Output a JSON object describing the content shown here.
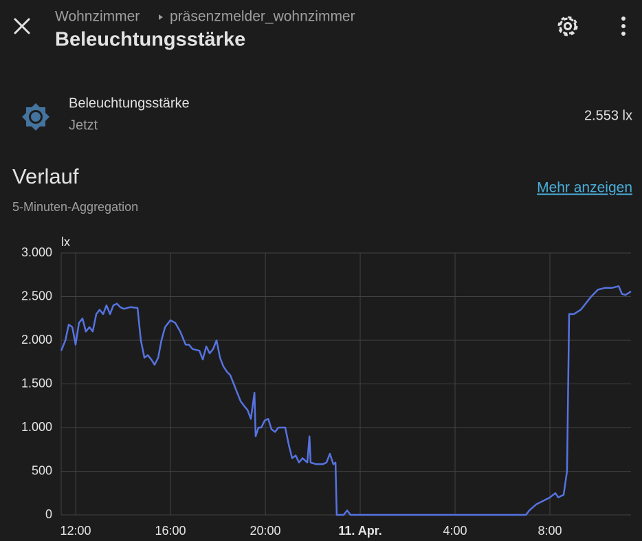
{
  "header": {
    "breadcrumb": [
      "Wohnzimmer",
      "präsenzmelder_wohnzimmer"
    ],
    "title": "Beleuchtungsstärke"
  },
  "entity": {
    "name": "Beleuchtungsstärke",
    "time": "Jetzt",
    "state": "2.553 lx"
  },
  "history": {
    "title": "Verlauf",
    "subtitle": "5-Minuten-Aggregation",
    "link": "Mehr anzeigen"
  },
  "chart_data": {
    "type": "line",
    "y_label": "lx",
    "color": "#5673e0",
    "grid": true,
    "xlim": [
      11.39,
      35.42
    ],
    "xticks": [
      {
        "value": 12,
        "label": "12:00"
      },
      {
        "value": 16,
        "label": "16:00"
      },
      {
        "value": 20,
        "label": "20:00"
      },
      {
        "value": 24,
        "label": "11. Apr."
      },
      {
        "value": 28,
        "label": "4:00"
      },
      {
        "value": 32,
        "label": "8:00"
      }
    ],
    "ylim": [
      0,
      3000
    ],
    "yticks": [
      0,
      500,
      {
        "value": 1000,
        "label": "1.000"
      },
      {
        "value": 1500,
        "label": "1.500"
      },
      {
        "value": 2000,
        "label": "2.000"
      },
      {
        "value": 2500,
        "label": "2.500"
      },
      {
        "value": 3000,
        "label": "3.000"
      }
    ],
    "x": [
      11.39,
      11.57,
      11.71,
      11.86,
      12.0,
      12.14,
      12.29,
      12.43,
      12.58,
      12.72,
      12.87,
      13.01,
      13.16,
      13.3,
      13.45,
      13.59,
      13.74,
      13.88,
      14.03,
      14.32,
      14.61,
      14.75,
      14.9,
      15.04,
      15.19,
      15.33,
      15.48,
      15.62,
      15.77,
      16.0,
      16.2,
      16.41,
      16.64,
      16.78,
      16.93,
      17.22,
      17.36,
      17.51,
      17.65,
      17.8,
      17.94,
      18.09,
      18.23,
      18.38,
      18.52,
      18.67,
      18.81,
      18.96,
      19.1,
      19.25,
      19.39,
      19.54,
      19.59,
      19.71,
      19.83,
      19.97,
      20.12,
      20.26,
      20.41,
      20.55,
      20.84,
      20.99,
      21.13,
      21.28,
      21.42,
      21.57,
      21.77,
      21.86,
      21.91,
      22.14,
      22.43,
      22.58,
      22.72,
      22.87,
      22.96,
      23.01,
      23.3,
      23.45,
      23.59,
      30.99,
      31.13,
      31.42,
      31.71,
      32.0,
      32.23,
      32.35,
      32.58,
      32.72,
      32.81,
      33.01,
      33.3,
      33.45,
      33.74,
      34.03,
      34.32,
      34.61,
      34.9,
      35.04,
      35.19,
      35.42
    ],
    "values": [
      1880,
      2000,
      2180,
      2150,
      1950,
      2200,
      2250,
      2100,
      2150,
      2100,
      2300,
      2350,
      2300,
      2400,
      2300,
      2400,
      2420,
      2380,
      2360,
      2380,
      2370,
      2000,
      1800,
      1830,
      1780,
      1720,
      1800,
      2000,
      2150,
      2230,
      2200,
      2100,
      1950,
      1950,
      1900,
      1880,
      1780,
      1930,
      1850,
      1900,
      2000,
      1800,
      1700,
      1640,
      1600,
      1500,
      1400,
      1300,
      1250,
      1200,
      1100,
      1400,
      900,
      1000,
      1000,
      1080,
      1100,
      980,
      950,
      1000,
      1000,
      800,
      650,
      680,
      600,
      650,
      600,
      900,
      600,
      580,
      580,
      600,
      700,
      580,
      600,
      0,
      0,
      50,
      0,
      0,
      50,
      120,
      160,
      200,
      250,
      200,
      230,
      500,
      2300,
      2300,
      2350,
      2400,
      2500,
      2580,
      2600,
      2600,
      2620,
      2530,
      2520,
      2560
    ]
  }
}
